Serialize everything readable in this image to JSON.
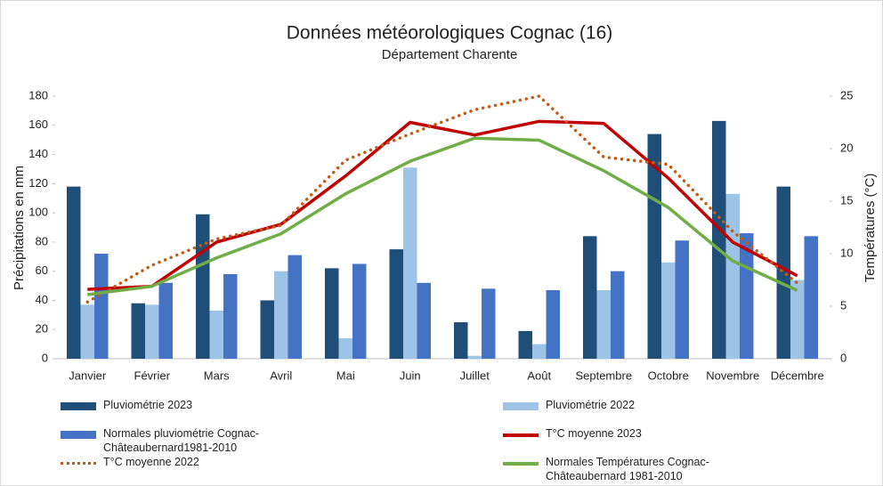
{
  "chart_data": {
    "type": "bar_line",
    "title": "Données météorologiques Cognac (16)",
    "subtitle": "Département Charente",
    "ylabel": "Précipitations en mm",
    "y2label": "Températures (°C)",
    "categories": [
      "Janvier",
      "Février",
      "Mars",
      "Avril",
      "Mai",
      "Juin",
      "Juillet",
      "Août",
      "Septembre",
      "Octobre",
      "Novembre",
      "Décembre"
    ],
    "ylim": [
      0,
      180
    ],
    "yticks": [
      0,
      20,
      40,
      60,
      80,
      100,
      120,
      140,
      160,
      180
    ],
    "y2lim": [
      0,
      25
    ],
    "y2ticks": [
      0,
      5,
      10,
      15,
      20,
      25
    ],
    "series": [
      {
        "name": "Pluviométrie 2023",
        "type": "bar",
        "color": "#1f4e79",
        "values": [
          118,
          38,
          99,
          40,
          62,
          75,
          25,
          19,
          84,
          154,
          163,
          118
        ]
      },
      {
        "name": "Pluviométrie 2022",
        "type": "bar",
        "color": "#9dc3e6",
        "values": [
          37,
          37,
          33,
          60,
          14,
          131,
          2,
          10,
          47,
          66,
          113,
          54
        ]
      },
      {
        "name": "Normales pluviométrie Cognac-Châteaubernard1981-2010",
        "type": "bar",
        "color": "#4472c4",
        "values": [
          72,
          52,
          58,
          71,
          65,
          52,
          48,
          47,
          60,
          81,
          86,
          84
        ]
      },
      {
        "name": "T°C moyenne 2023",
        "type": "line",
        "axis": "y2",
        "color": "#c00000",
        "values": [
          6.6,
          6.9,
          11.1,
          12.8,
          17.4,
          22.5,
          21.3,
          22.6,
          22.4,
          17.2,
          11.1,
          7.9
        ]
      },
      {
        "name": "T°C moyenne 2022",
        "type": "line",
        "axis": "y2",
        "dashed": true,
        "color": "#c55a11",
        "values": [
          5.4,
          8.9,
          11.4,
          12.7,
          18.9,
          21.4,
          23.7,
          25.0,
          19.2,
          18.5,
          12.1,
          7.2
        ]
      },
      {
        "name": "Normales Températures Cognac-Châteaubernard 1981-2010",
        "type": "line",
        "axis": "y2",
        "color": "#70ad47",
        "values": [
          6.1,
          6.9,
          9.6,
          11.9,
          15.7,
          18.8,
          21.0,
          20.8,
          17.9,
          14.4,
          9.3,
          6.5
        ]
      }
    ]
  }
}
